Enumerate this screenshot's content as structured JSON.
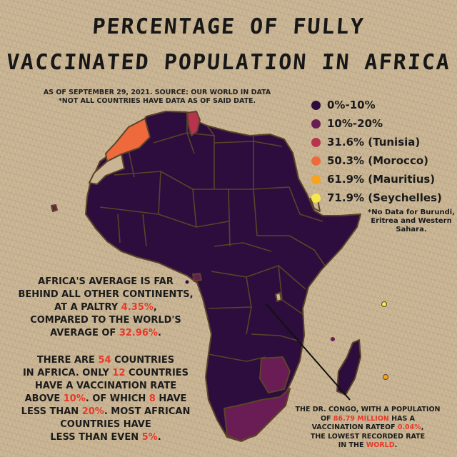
{
  "title": {
    "line1": "Percentage of fully",
    "line2": "vaccinated population in Africa"
  },
  "subtitle": {
    "line1": "AS OF SEPTEMBER 29, 2021. SOURCE: OUR WORLD IN DATA",
    "line2": "*NOT ALL COUNTRIES HAVE DATA AS OF SAID DATE."
  },
  "legend": [
    {
      "label": "0%-10%",
      "color": "#2c0d3d"
    },
    {
      "label": "10%-20%",
      "color": "#6a1d55"
    },
    {
      "label": "31.6% (Tunisia)",
      "color": "#b8334e"
    },
    {
      "label": "50.3% (Morocco)",
      "color": "#ee6a3c"
    },
    {
      "label": "61.9% (Mauritius)",
      "color": "#f9a21b"
    },
    {
      "label": "71.9% (Seychelles)",
      "color": "#f6e84a"
    }
  ],
  "no_data_note": "*No Data for Burundi, Eritrea and Western Sahara.",
  "colors": {
    "no_data": "#c9b594",
    "border": "#5c4328",
    "highlight_red": "#e8382a"
  },
  "blurb1": {
    "l1": "AFRICA'S AVERAGE IS FAR",
    "l2": "BEHIND ALL OTHER CONTINENTS,",
    "l3a": "AT A PALTRY ",
    "africa_avg": "4.35%",
    "l3b": ",",
    "l4": "COMPARED TO THE WORLD'S",
    "l5a": "AVERAGE OF ",
    "world_avg": "32.96%",
    "l5b": "."
  },
  "blurb2": {
    "l1a": "THERE ARE ",
    "countries": "54",
    "l1b": " COUNTRIES",
    "l2a": "IN AFRICA. ONLY ",
    "only": "12",
    "l2b": " COUNTRIES",
    "l3": "HAVE A VACCINATION RATE",
    "l4a": "ABOVE ",
    "above_pct": "10%",
    "l4b": ". OF WHICH ",
    "of_which": "8",
    "l4c": " HAVE",
    "l5a": "LESS THAN ",
    "less_pct": "20%",
    "l5b": ".  MOST AFRICAN",
    "l6": "COUNTRIES HAVE",
    "l7a": "LESS THAN EVEN ",
    "even_pct": "5%",
    "l7b": "."
  },
  "congo_note": {
    "l1": "THE DR. CONGO, WITH A POPULATION",
    "l2a": "OF ",
    "population": "86.79 MILLION",
    "l2b": " HAS A",
    "l3a": "VACCINATION RATEOF ",
    "rate": "0.04%",
    "l3b": ",",
    "l4": "THE LOWEST RECORDED RATE",
    "l5a": "IN THE ",
    "world": "WORLD",
    "l5b": "."
  }
}
